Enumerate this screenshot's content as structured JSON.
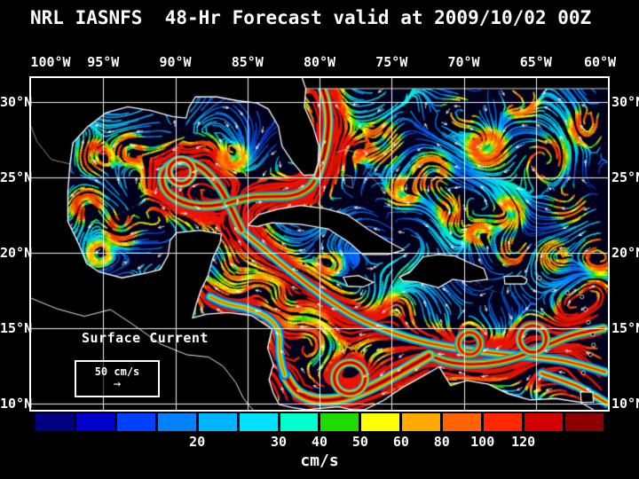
{
  "title": "NRL IASNFS  48-Hr Forecast valid at 2009/10/02 00Z",
  "axes": {
    "lon_labels": [
      "100°W",
      "95°W",
      "90°W",
      "85°W",
      "80°W",
      "75°W",
      "70°W",
      "65°W",
      "60°W"
    ],
    "lon_values": [
      -100,
      -95,
      -90,
      -85,
      -80,
      -75,
      -70,
      -65,
      -60
    ],
    "lat_labels": [
      "30°N",
      "25°N",
      "20°N",
      "15°N",
      "10°N"
    ],
    "lat_values": [
      30,
      25,
      20,
      15,
      10
    ]
  },
  "legend": {
    "title": "Surface Current",
    "scale_label": "50 cm/s",
    "arrow": "→"
  },
  "colorbar": {
    "unit": "cm/s",
    "segments": [
      "#000082",
      "#0000cd",
      "#0041ff",
      "#0082ff",
      "#00b4ff",
      "#00e1ff",
      "#00ffcd",
      "#1edc00",
      "#ffff00",
      "#ffaa00",
      "#ff6400",
      "#ff2800",
      "#d20000",
      "#8c0000"
    ],
    "ticks": [
      {
        "label": "20",
        "boundary_after_segment": 4
      },
      {
        "label": "30",
        "boundary_after_segment": 6
      },
      {
        "label": "40",
        "boundary_after_segment": 7
      },
      {
        "label": "50",
        "boundary_after_segment": 8
      },
      {
        "label": "60",
        "boundary_after_segment": 9
      },
      {
        "label": "80",
        "boundary_after_segment": 10
      },
      {
        "label": "100",
        "boundary_after_segment": 11
      },
      {
        "label": "120",
        "boundary_after_segment": 12
      }
    ]
  },
  "colors": {
    "background": "#000000",
    "ocean": "#00001c",
    "grid": "#ffffff",
    "coastline": "#ffffff",
    "text": "#ffffff"
  }
}
